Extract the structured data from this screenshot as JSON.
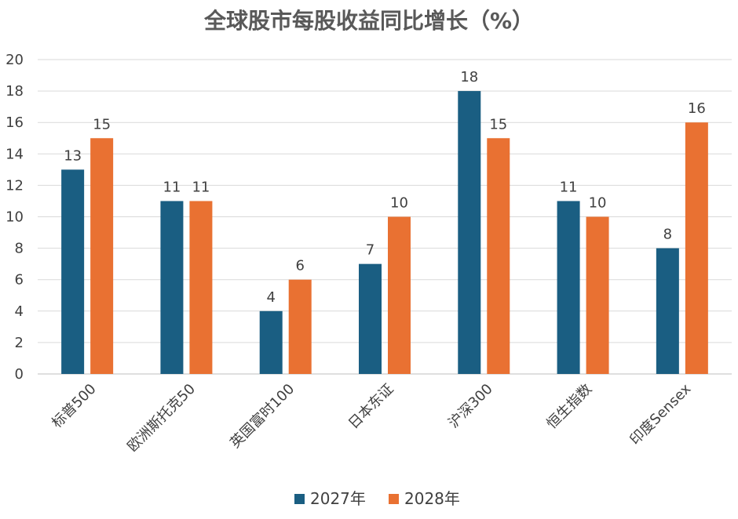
{
  "chart_data": {
    "type": "bar",
    "title": "全球股市每股收益同比增长（%）",
    "categories": [
      "标普500",
      "欧洲斯托克50",
      "英国富时100",
      "日本东证",
      "沪深300",
      "恒生指数",
      "印度Sensex"
    ],
    "series": [
      {
        "name": "2027年",
        "color": "#1a5e82",
        "values": [
          13,
          11,
          4,
          7,
          18,
          11,
          8
        ]
      },
      {
        "name": "2028年",
        "color": "#e97132",
        "values": [
          15,
          11,
          6,
          10,
          15,
          10,
          16
        ]
      }
    ],
    "ylim": [
      0,
      20
    ],
    "yticks": [
      0,
      2,
      4,
      6,
      8,
      10,
      12,
      14,
      16,
      18,
      20
    ],
    "grid": true,
    "legend": "bottom",
    "data_labels": true
  }
}
